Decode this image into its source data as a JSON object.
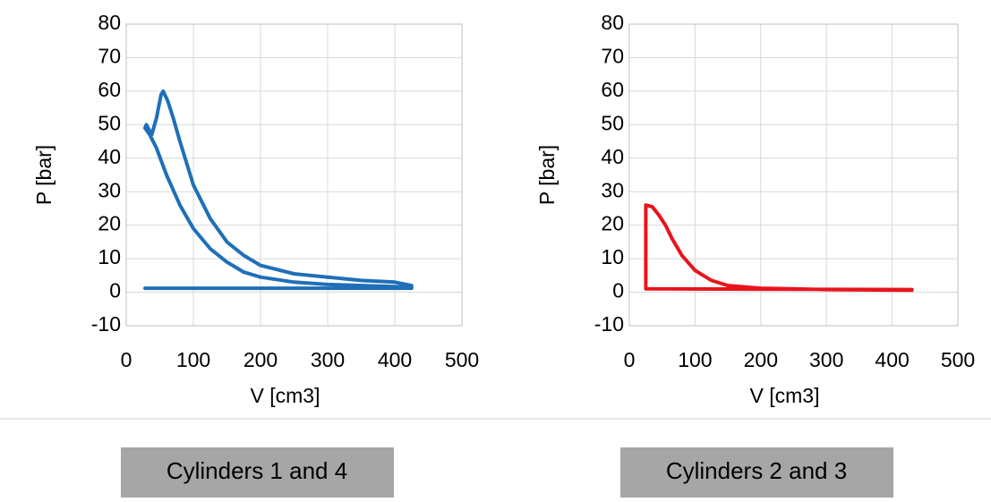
{
  "chart_data": [
    {
      "type": "line",
      "xlabel": "V [cm3]",
      "ylabel": "P [bar]",
      "caption": "Cylinders 1 and 4",
      "xlim": [
        0,
        500
      ],
      "xticks": [
        0,
        100,
        200,
        300,
        400,
        500
      ],
      "ylim": [
        -10,
        80
      ],
      "yticks": [
        -10,
        0,
        10,
        20,
        30,
        40,
        50,
        60,
        70,
        80
      ],
      "grid": true,
      "series": [
        {
          "color": "#1f6fb8",
          "x": [
            425,
            350,
            300,
            250,
            200,
            175,
            150,
            125,
            100,
            80,
            60,
            45,
            35,
            28,
            30,
            38,
            45,
            52,
            55,
            62,
            70,
            80,
            100,
            125,
            150,
            175,
            200,
            250,
            300,
            350,
            400,
            425,
            425,
            28
          ],
          "values": [
            1.5,
            2,
            2.3,
            3,
            4.5,
            6,
            9,
            13,
            19,
            26,
            35,
            43,
            47,
            49,
            50,
            47,
            52,
            59,
            60,
            57,
            52,
            45,
            32,
            22,
            15,
            11,
            8,
            5.5,
            4.5,
            3.5,
            3,
            2,
            1.2,
            1.2
          ]
        }
      ]
    },
    {
      "type": "line",
      "xlabel": "V [cm3]",
      "ylabel": "P [bar]",
      "caption": "Cylinders 2 and 3",
      "xlim": [
        0,
        500
      ],
      "xticks": [
        0,
        100,
        200,
        300,
        400,
        500
      ],
      "ylim": [
        -10,
        80
      ],
      "yticks": [
        -10,
        0,
        10,
        20,
        30,
        40,
        50,
        60,
        70,
        80
      ],
      "grid": true,
      "series": [
        {
          "color": "#e8141c",
          "x": [
            430,
            300,
            200,
            150,
            125,
            100,
            80,
            65,
            55,
            45,
            35,
            25,
            25,
            430
          ],
          "values": [
            0.6,
            0.8,
            1.2,
            2,
            3.5,
            6.5,
            11,
            16,
            20,
            23,
            25.5,
            26,
            1,
            0.8
          ]
        }
      ]
    }
  ]
}
